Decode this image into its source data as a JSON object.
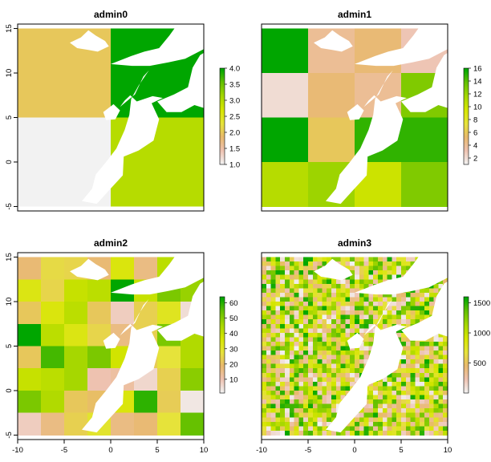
{
  "chart_data": [
    {
      "type": "heatmap",
      "title": "admin0",
      "xlim": [
        -10,
        10
      ],
      "ylim": [
        -5.5,
        15.5
      ],
      "show_x_ticks": false,
      "xticks": [],
      "yticks": [
        -5,
        0,
        5,
        10,
        15
      ],
      "zones": [
        {
          "x": [
            -10,
            0
          ],
          "y": [
            5,
            15
          ],
          "value": 2.0
        },
        {
          "x": [
            0,
            10
          ],
          "y": [
            5,
            15
          ],
          "value": 4.0
        },
        {
          "x": [
            -10,
            0
          ],
          "y": [
            -5,
            5
          ],
          "value": 1.0
        },
        {
          "x": [
            0,
            10
          ],
          "y": [
            -5,
            5
          ],
          "value": 3.0
        }
      ],
      "legend": {
        "range": [
          1.0,
          4.0
        ],
        "ticks": [
          "1.0",
          "1.5",
          "2.0",
          "2.5",
          "3.0",
          "3.5",
          "4.0"
        ],
        "tick_values": [
          1.0,
          1.5,
          2.0,
          2.5,
          3.0,
          3.5,
          4.0
        ]
      }
    },
    {
      "type": "heatmap",
      "title": "admin1",
      "xlim": [
        -10,
        10
      ],
      "ylim": [
        -5.5,
        15.5
      ],
      "show_x_ticks": false,
      "xticks": [],
      "yticks": [],
      "grid": {
        "nx": 4,
        "ny": 4,
        "values": [
          [
            16,
            4,
            5,
            3
          ],
          [
            2,
            5,
            4,
            13
          ],
          [
            16,
            6,
            15,
            15
          ],
          [
            11,
            12,
            10,
            13
          ]
        ]
      },
      "legend": {
        "range": [
          1,
          16
        ],
        "ticks": [
          "2",
          "4",
          "6",
          "8",
          "10",
          "12",
          "14",
          "16"
        ],
        "tick_values": [
          2,
          4,
          6,
          8,
          10,
          12,
          14,
          16
        ]
      }
    },
    {
      "type": "heatmap",
      "title": "admin2",
      "xlim": [
        -10,
        10
      ],
      "ylim": [
        -5.5,
        15.5
      ],
      "show_x_ticks": true,
      "xticks": [
        -10,
        -5,
        0,
        5,
        10
      ],
      "yticks": [
        -5,
        0,
        5,
        10,
        15
      ],
      "grid": {
        "nx": 8,
        "ny": 8,
        "values": [
          [
            18,
            26,
            25,
            18,
            35,
            16,
            42,
            50
          ],
          [
            34,
            25,
            40,
            42,
            64,
            40,
            52,
            48
          ],
          [
            22,
            35,
            42,
            22,
            8,
            24,
            32,
            5
          ],
          [
            64,
            42,
            34,
            25,
            16,
            24,
            52,
            44
          ],
          [
            22,
            58,
            46,
            52,
            38,
            23,
            28,
            44
          ],
          [
            40,
            42,
            46,
            10,
            12,
            6,
            24,
            50
          ],
          [
            52,
            44,
            22,
            20,
            35,
            60,
            23,
            3
          ],
          [
            8,
            16,
            24,
            30,
            16,
            18,
            28,
            55
          ]
        ]
      },
      "legend": {
        "range": [
          1,
          64
        ],
        "ticks": [
          "10",
          "20",
          "30",
          "40",
          "50",
          "60"
        ],
        "tick_values": [
          10,
          20,
          30,
          40,
          50,
          60
        ]
      }
    },
    {
      "type": "heatmap",
      "title": "admin3",
      "xlim": [
        -10,
        10
      ],
      "ylim": [
        -5.5,
        15.5
      ],
      "show_x_ticks": true,
      "xticks": [
        -10,
        -5,
        0,
        5,
        10
      ],
      "yticks": [],
      "grid": {
        "nx": 40,
        "ny": 40,
        "random": true,
        "seed": 7
      },
      "legend": {
        "range": [
          1,
          1600
        ],
        "ticks": [
          "500",
          "1000",
          "1500"
        ],
        "tick_values": [
          500,
          1000,
          1500
        ]
      }
    }
  ],
  "colors": {
    "ramp": [
      "#f2f2f2",
      "#eec2b0",
      "#e8b96c",
      "#e6e33a",
      "#d6e600",
      "#a6d700",
      "#66c100",
      "#00a600"
    ],
    "na": "#ffffff",
    "frame": "#000000",
    "text": "#000000"
  }
}
